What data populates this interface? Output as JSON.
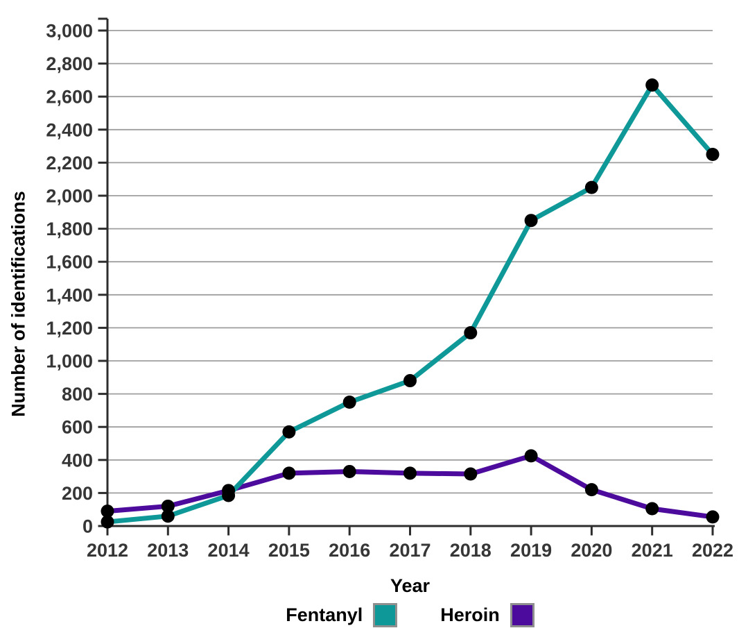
{
  "chart_data": {
    "type": "line",
    "x": [
      2012,
      2013,
      2014,
      2015,
      2016,
      2017,
      2018,
      2019,
      2020,
      2021,
      2022
    ],
    "series": [
      {
        "name": "Fentanyl",
        "color": "#0E9898",
        "values": [
          25,
          60,
          185,
          570,
          750,
          880,
          1170,
          1850,
          2050,
          2670,
          2250
        ]
      },
      {
        "name": "Heroin",
        "color": "#4C0B9D",
        "values": [
          90,
          120,
          215,
          320,
          330,
          320,
          315,
          425,
          220,
          105,
          55
        ]
      }
    ],
    "title": "",
    "xlabel": "Year",
    "ylabel": "Number of identifications",
    "ylim": [
      0,
      3000
    ],
    "ytick_step": 200,
    "grid": "horizontal",
    "legend_position": "bottom-center",
    "marker": {
      "shape": "circle",
      "color": "#000000"
    },
    "style": {
      "axis_color": "#2d2d2d",
      "grid_color": "#9e9e9e",
      "tick_label_color": "#363636",
      "background": "#ffffff"
    }
  },
  "legend": {
    "items": [
      {
        "label": "Fentanyl",
        "color": "#0E9898"
      },
      {
        "label": "Heroin",
        "color": "#4C0B9D"
      }
    ]
  },
  "axes": {
    "xlabel": "Year",
    "ylabel": "Number of identifications"
  }
}
